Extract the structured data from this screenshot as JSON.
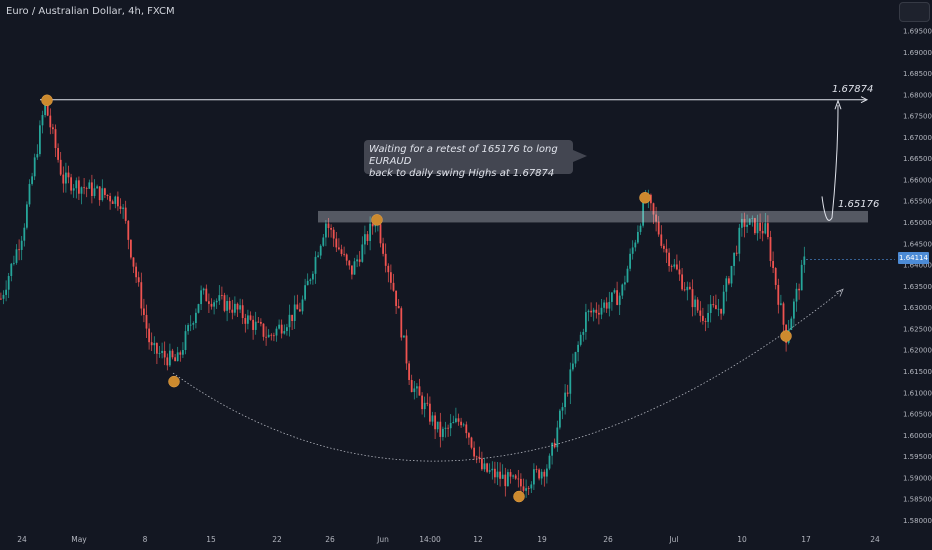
{
  "header": {
    "title": "Euro / Australian Dollar, 4h, FXCM"
  },
  "annotation": {
    "text_line1": "Waiting for a retest of 165176 to long EURAUD",
    "text_line2": "back to daily swing Highs at 1.67874"
  },
  "levels": {
    "swing_high_label": "1.67874",
    "retest_label": "1.65176"
  },
  "current_price_label": "1.64114",
  "colors": {
    "background": "#131722",
    "up": "#26a69a",
    "down": "#ef5350",
    "axis_text": "#b2b5be",
    "marker": "#cc8a2e",
    "zone": "#d1d4dc",
    "price_tag": "#4c8bd6"
  },
  "chart_data": {
    "type": "candlestick",
    "title": "Euro / Australian Dollar, 4h, FXCM",
    "ylim": [
      1.578,
      1.7
    ],
    "y_ticks": [
      "1.69500",
      "1.69000",
      "1.68500",
      "1.68000",
      "1.67500",
      "1.67000",
      "1.66500",
      "1.66000",
      "1.65500",
      "1.65000",
      "1.64500",
      "1.64000",
      "1.63500",
      "1.63000",
      "1.62500",
      "1.62000",
      "1.61500",
      "1.61000",
      "1.60500",
      "1.60000",
      "1.59500",
      "1.59000",
      "1.58500",
      "1.58000"
    ],
    "x_ticks": [
      "24",
      "May",
      "8",
      "15",
      "22",
      "26",
      "Jun",
      "14:00",
      "12",
      "19",
      "26",
      "Jul",
      "10",
      "17",
      "24"
    ],
    "price_path": [
      [
        "24",
        1.632
      ],
      [
        "24",
        1.652
      ],
      [
        "May",
        1.678
      ],
      [
        "May",
        1.662
      ],
      [
        "8",
        1.635
      ],
      [
        "8",
        1.618
      ],
      [
        "15",
        1.632
      ],
      [
        "22",
        1.624
      ],
      [
        "26",
        1.648
      ],
      [
        "26",
        1.636
      ],
      [
        "Jun",
        1.651
      ],
      [
        "Jun",
        1.628
      ],
      [
        "14:00",
        1.602
      ],
      [
        "12",
        1.592
      ],
      [
        "19",
        1.588
      ],
      [
        "19",
        1.602
      ],
      [
        "26",
        1.628
      ],
      [
        "26",
        1.655
      ],
      [
        "26",
        1.645
      ],
      [
        "Jul",
        1.628
      ],
      [
        "Jul",
        1.645
      ],
      [
        "10",
        1.65
      ],
      [
        "10",
        1.638
      ],
      [
        "17",
        1.625
      ],
      [
        "17",
        1.641
      ]
    ],
    "swing_high_level": 1.67874,
    "retest_zone_level": 1.65176,
    "current_price": 1.64114,
    "markers": [
      {
        "x": "24",
        "y": 1.6786
      },
      {
        "x": "8",
        "y": 1.6125
      },
      {
        "x": "26",
        "y": 1.6505
      },
      {
        "x": "19",
        "y": 1.5855
      },
      {
        "x": "26",
        "y": 1.6557
      },
      {
        "x": "17",
        "y": 1.6232
      }
    ]
  }
}
